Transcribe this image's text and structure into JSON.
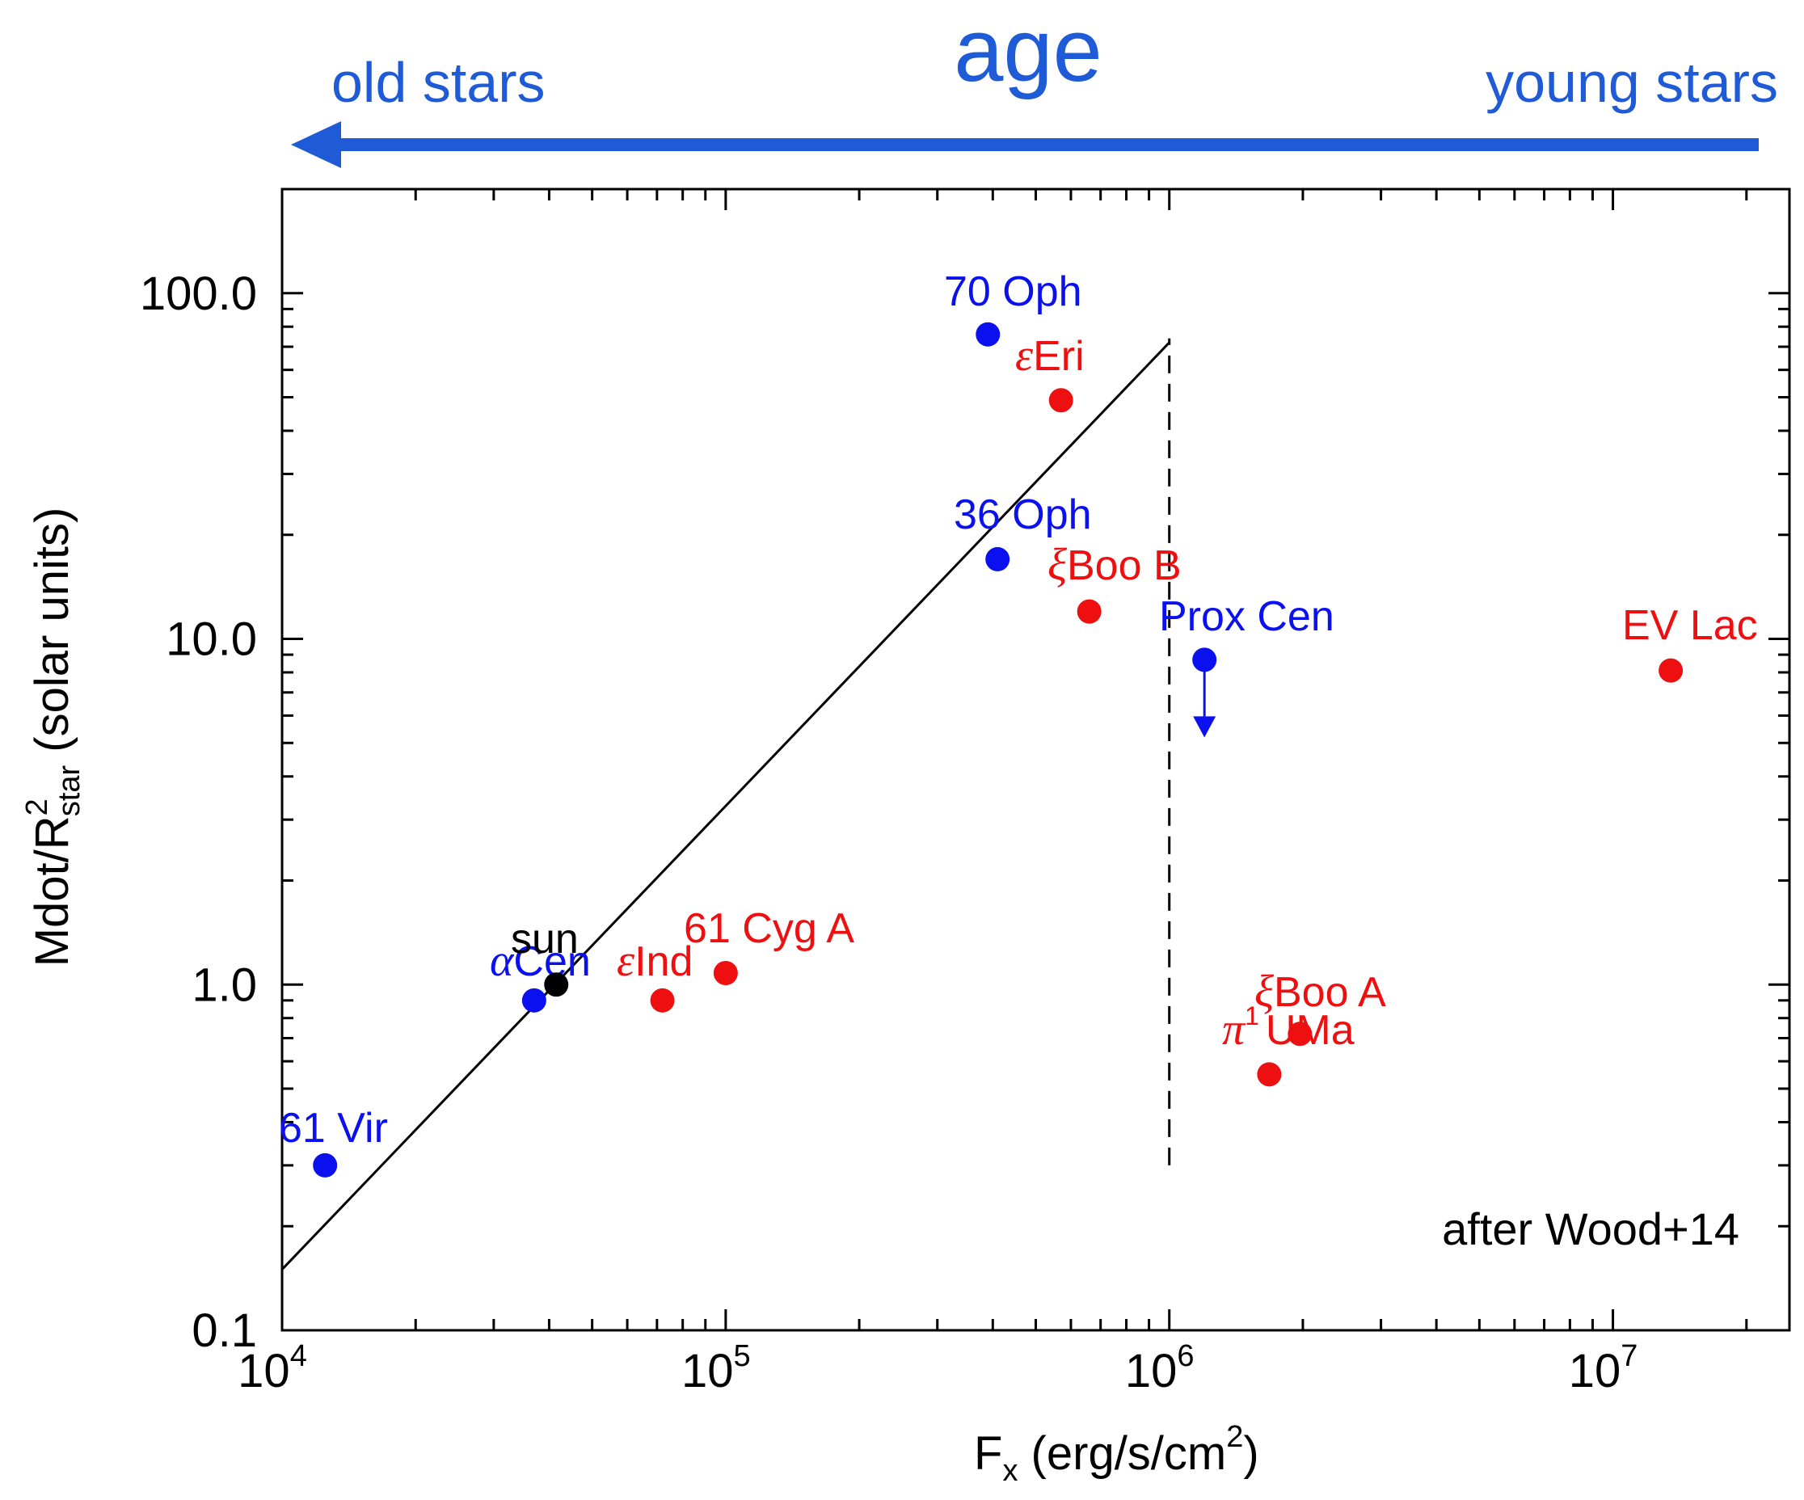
{
  "header": {
    "title": "age",
    "left_label": "old stars",
    "right_label": "young stars",
    "arrow_direction": "left"
  },
  "colors": {
    "header": "#1f5bd6",
    "blue": "#0a10ee",
    "red": "#ee1010",
    "black": "#000000"
  },
  "chart_data": {
    "type": "scatter",
    "x_scale": "log",
    "y_scale": "log",
    "xlim": [
      10000,
      25000000
    ],
    "ylim": [
      0.1,
      200
    ],
    "xlabel": {
      "main": "F",
      "sub": "x",
      "rest": " (erg/s/cm",
      "sup": "2",
      "end": ")"
    },
    "ylabel": {
      "main": "Mdot/R",
      "sup": "2",
      "sub": "star",
      "rest": "   (solar units)"
    },
    "x_ticks": [
      {
        "value": 10000,
        "base": "10",
        "exp": "4"
      },
      {
        "value": 100000,
        "base": "10",
        "exp": "5"
      },
      {
        "value": 1000000,
        "base": "10",
        "exp": "6"
      },
      {
        "value": 10000000,
        "base": "10",
        "exp": "7"
      }
    ],
    "y_ticks": [
      {
        "value": 0.1,
        "label": "0.1"
      },
      {
        "value": 1,
        "label": "1.0"
      },
      {
        "value": 10,
        "label": "10.0"
      },
      {
        "value": 100,
        "label": "100.0"
      }
    ],
    "fit_line": {
      "x": [
        10000,
        1000000
      ],
      "y": [
        0.15,
        72
      ]
    },
    "vertical_line": {
      "x": 1000000,
      "y_range": [
        0.3,
        74
      ],
      "style": "dashed"
    },
    "annotation": "after Wood+14",
    "points": [
      {
        "id": "61-vir",
        "x": 12500,
        "y": 0.3,
        "color": "blue",
        "prefix": "",
        "label": "61 Vir"
      },
      {
        "id": "alpha-cen",
        "x": 37000,
        "y": 0.9,
        "color": "blue",
        "prefix": "α",
        "label": "Cen"
      },
      {
        "id": "sun",
        "x": 41500,
        "y": 1.0,
        "color": "black",
        "prefix": "",
        "label": "sun"
      },
      {
        "id": "eps-ind",
        "x": 72000,
        "y": 0.9,
        "color": "red",
        "prefix": "ε",
        "label": "Ind"
      },
      {
        "id": "61-cyg-a",
        "x": 100000,
        "y": 1.08,
        "color": "red",
        "prefix": "",
        "label": "61 Cyg A"
      },
      {
        "id": "70-oph",
        "x": 390000,
        "y": 76,
        "color": "blue",
        "prefix": "",
        "label": "70 Oph"
      },
      {
        "id": "eps-eri",
        "x": 570000,
        "y": 49,
        "color": "red",
        "prefix": "ε",
        "label": "Eri"
      },
      {
        "id": "36-oph",
        "x": 410000,
        "y": 17,
        "color": "blue",
        "prefix": "",
        "label": "36 Oph"
      },
      {
        "id": "xi-boo-b",
        "x": 660000,
        "y": 12,
        "color": "red",
        "prefix": "ξ",
        "label": "Boo B"
      },
      {
        "id": "prox-cen",
        "x": 1200000,
        "y": 8.7,
        "color": "blue",
        "prefix": "",
        "label": "Prox Cen",
        "upper_limit": true
      },
      {
        "id": "ev-lac",
        "x": 13500000,
        "y": 8.1,
        "color": "red",
        "prefix": "",
        "label": "EV Lac"
      },
      {
        "id": "xi-boo-a",
        "x": 1970000,
        "y": 0.72,
        "color": "red",
        "prefix": "ξ",
        "label": "Boo A"
      },
      {
        "id": "pi1-uma",
        "x": 1680000,
        "y": 0.55,
        "color": "red",
        "prefix": "π",
        "prefix_sup": "1",
        "label": "UMa"
      }
    ]
  }
}
